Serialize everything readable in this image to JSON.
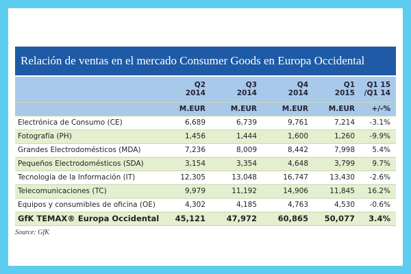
{
  "title": "Relación de ventas en el mercado Consumer Goods en Europa Occidental",
  "header": {
    "columns": [
      [
        "Q2",
        "2014"
      ],
      [
        "Q3",
        "2014"
      ],
      [
        "Q4",
        "2014"
      ],
      [
        "Q1",
        "2015"
      ],
      [
        "Q1 15",
        "/Q1 14"
      ]
    ],
    "units": [
      "M.EUR",
      "M.EUR",
      "M.EUR",
      "M.EUR",
      "+/-%"
    ]
  },
  "table": {
    "rows": [
      [
        "Electrónica de Consumo (CE)",
        "6,689",
        "6,739",
        "9,761",
        "7,214",
        "-3.1%"
      ],
      [
        "Fotografía (PH)",
        "1,456",
        "1,444",
        "1,600",
        "1,260",
        "-9.9%"
      ],
      [
        "Grandes Electrodomésticos (MDA)",
        "7,236",
        "8,009",
        "8,442",
        "7,998",
        "5.4%"
      ],
      [
        "Pequeños Electrodomésticos (SDA)",
        "3,154",
        "3,354",
        "4,648",
        "3,799",
        "9.7%"
      ],
      [
        "Tecnología de la Información (IT)",
        "12,305",
        "13,048",
        "16,747",
        "13,430",
        "-2.6%"
      ],
      [
        "Telecomunicaciones (TC)",
        "9,979",
        "11,192",
        "14,906",
        "11,845",
        "16.2%"
      ],
      [
        "Equipos y consumibles de oficina (OE)",
        "4,302",
        "4,185",
        "4,763",
        "4,530",
        "-0.6%"
      ]
    ],
    "total": [
      "GfK TEMAX® Europa Occidental",
      "45,121",
      "47,972",
      "60,865",
      "50,077",
      "3.4%"
    ]
  },
  "source": "Source: GfK"
}
